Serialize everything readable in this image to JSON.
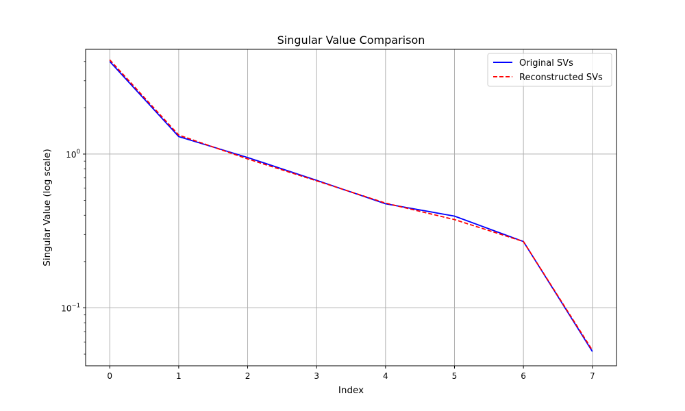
{
  "chart_data": {
    "type": "line",
    "title": "Singular Value Comparison",
    "xlabel": "Index",
    "ylabel": "Singular Value (log scale)",
    "x": [
      0,
      1,
      2,
      3,
      4,
      5,
      6,
      7
    ],
    "series": [
      {
        "name": "Original SVs",
        "values": [
          4.0,
          1.3,
          0.95,
          0.675,
          0.475,
          0.395,
          0.27,
          0.052
        ],
        "color": "#0000ff",
        "style": "solid"
      },
      {
        "name": "Reconstructed SVs",
        "values": [
          4.1,
          1.33,
          0.93,
          0.67,
          0.48,
          0.375,
          0.27,
          0.053
        ],
        "color": "#ff0000",
        "style": "dashed"
      }
    ],
    "xlim": [
      -0.35,
      7.35
    ],
    "ylim": [
      0.042,
      4.8
    ],
    "yscale": "log",
    "x_ticks": [
      "0",
      "1",
      "2",
      "3",
      "4",
      "5",
      "6",
      "7"
    ],
    "y_ticks": [
      {
        "value": 1,
        "base": "10",
        "exp": "0"
      },
      {
        "value": 0.1,
        "base": "10",
        "exp": "−1"
      }
    ],
    "grid": true,
    "legend_position": "top-right"
  }
}
